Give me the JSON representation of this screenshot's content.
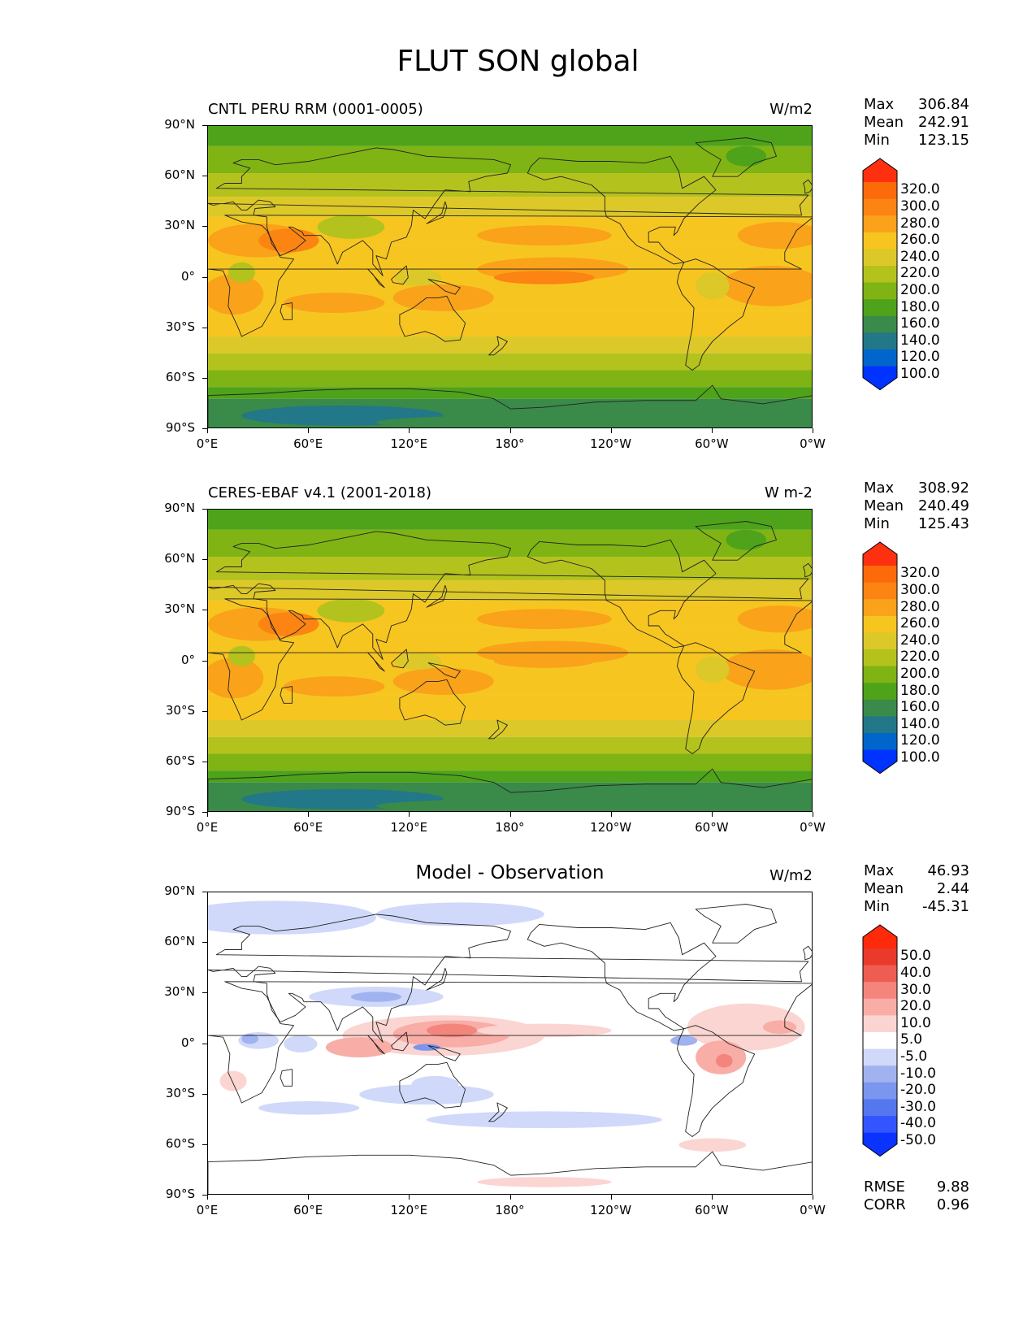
{
  "page_title": "FLUT SON global",
  "panels": [
    {
      "id": "model",
      "left_title": "CNTL PERU RRM (0001-0005)",
      "right_title": "W/m2",
      "stats": {
        "max_label": "Max",
        "max": "306.84",
        "mean_label": "Mean",
        "mean": "242.91",
        "min_label": "Min",
        "min": "123.15"
      },
      "colorbar_ticks": [
        "320.0",
        "300.0",
        "280.0",
        "260.0",
        "240.0",
        "220.0",
        "200.0",
        "180.0",
        "160.0",
        "140.0",
        "120.0",
        "100.0"
      ]
    },
    {
      "id": "obs",
      "left_title": "CERES-EBAF v4.1 (2001-2018)",
      "right_title": "W m-2",
      "stats": {
        "max_label": "Max",
        "max": "308.92",
        "mean_label": "Mean",
        "mean": "240.49",
        "min_label": "Min",
        "min": "125.43"
      },
      "colorbar_ticks": [
        "320.0",
        "300.0",
        "280.0",
        "260.0",
        "240.0",
        "220.0",
        "200.0",
        "180.0",
        "160.0",
        "140.0",
        "120.0",
        "100.0"
      ]
    },
    {
      "id": "diff",
      "center_title": "Model - Observation",
      "right_title": "W/m2",
      "stats": {
        "max_label": "Max",
        "max": "46.93",
        "mean_label": "Mean",
        "mean": "2.44",
        "min_label": "Min",
        "min": "-45.31"
      },
      "colorbar_ticks": [
        "50.0",
        "40.0",
        "30.0",
        "20.0",
        "10.0",
        "5.0",
        "-5.0",
        "-10.0",
        "-20.0",
        "-30.0",
        "-40.0",
        "-50.0"
      ],
      "rmse_label": "RMSE",
      "rmse": "9.88",
      "corr_label": "CORR",
      "corr": "0.96"
    }
  ],
  "lat_ticks": [
    "90°N",
    "60°N",
    "30°N",
    "0°",
    "30°S",
    "60°S",
    "90°S"
  ],
  "lon_ticks": [
    "0°E",
    "60°E",
    "120°E",
    "180°",
    "120°W",
    "60°W",
    "0°W"
  ],
  "colors": {
    "abs_scale": [
      "#0033ff",
      "#0066cc",
      "#227788",
      "#3a8a4a",
      "#4ea31a",
      "#7fb414",
      "#b4c21e",
      "#dcc828",
      "#f7c520",
      "#f9a21a",
      "#fb8412",
      "#fd6a0a",
      "#ff3010"
    ],
    "diff_scale": [
      "#0a33ff",
      "#3355ff",
      "#5577ee",
      "#7b96ee",
      "#a0b2f0",
      "#d0d9fa",
      "#ffffff",
      "#fbd5d1",
      "#f8ada6",
      "#f4857d",
      "#ef5d52",
      "#ea3a2b",
      "#ff2a0a"
    ]
  }
}
